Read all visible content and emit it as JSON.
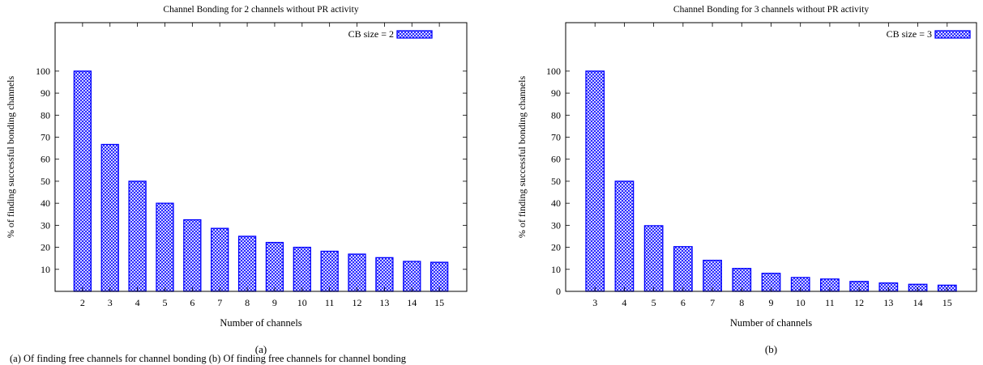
{
  "chart_data": [
    {
      "type": "bar",
      "panel_label": "(a)",
      "title": "Channel Bonding for 2 channels without PR activity",
      "xlabel": "Number of channels",
      "ylabel": "% of finding successful bonding channels",
      "categories": [
        "2",
        "3",
        "4",
        "5",
        "6",
        "7",
        "8",
        "9",
        "10",
        "11",
        "12",
        "13",
        "14",
        "15"
      ],
      "series": [
        {
          "name": "CB size = 2",
          "values": [
            100,
            66.7,
            50,
            40,
            32.5,
            28.6,
            25,
            22.2,
            20,
            18.2,
            16.9,
            15.3,
            13.6,
            13.2
          ]
        }
      ],
      "yticks": [
        10,
        20,
        30,
        40,
        50,
        60,
        70,
        80,
        90,
        100
      ],
      "ylim": [
        0,
        122
      ],
      "legend_position": "top-right",
      "bar_color": "#0000ff",
      "bar_fill": "crosshatch"
    },
    {
      "type": "bar",
      "panel_label": "(b)",
      "title": "Channel Bonding for 3 channels without PR activity",
      "xlabel": "Number of channels",
      "ylabel": "% of finding successful bonding channels",
      "categories": [
        "3",
        "4",
        "5",
        "6",
        "7",
        "8",
        "9",
        "10",
        "11",
        "12",
        "13",
        "14",
        "15"
      ],
      "series": [
        {
          "name": "CB size = 3",
          "values": [
            100,
            50,
            29.8,
            20.3,
            14.1,
            10.4,
            8.2,
            6.3,
            5.6,
            4.5,
            3.8,
            3.2,
            2.8
          ]
        }
      ],
      "yticks": [
        0,
        10,
        20,
        30,
        40,
        50,
        60,
        70,
        80,
        90,
        100
      ],
      "ylim": [
        0,
        122
      ],
      "legend_position": "top-right",
      "bar_color": "#0000ff",
      "bar_fill": "crosshatch"
    }
  ],
  "caption": "(a) Of finding free channels for channel bonding  (b) Of finding free channels for channel bonding"
}
